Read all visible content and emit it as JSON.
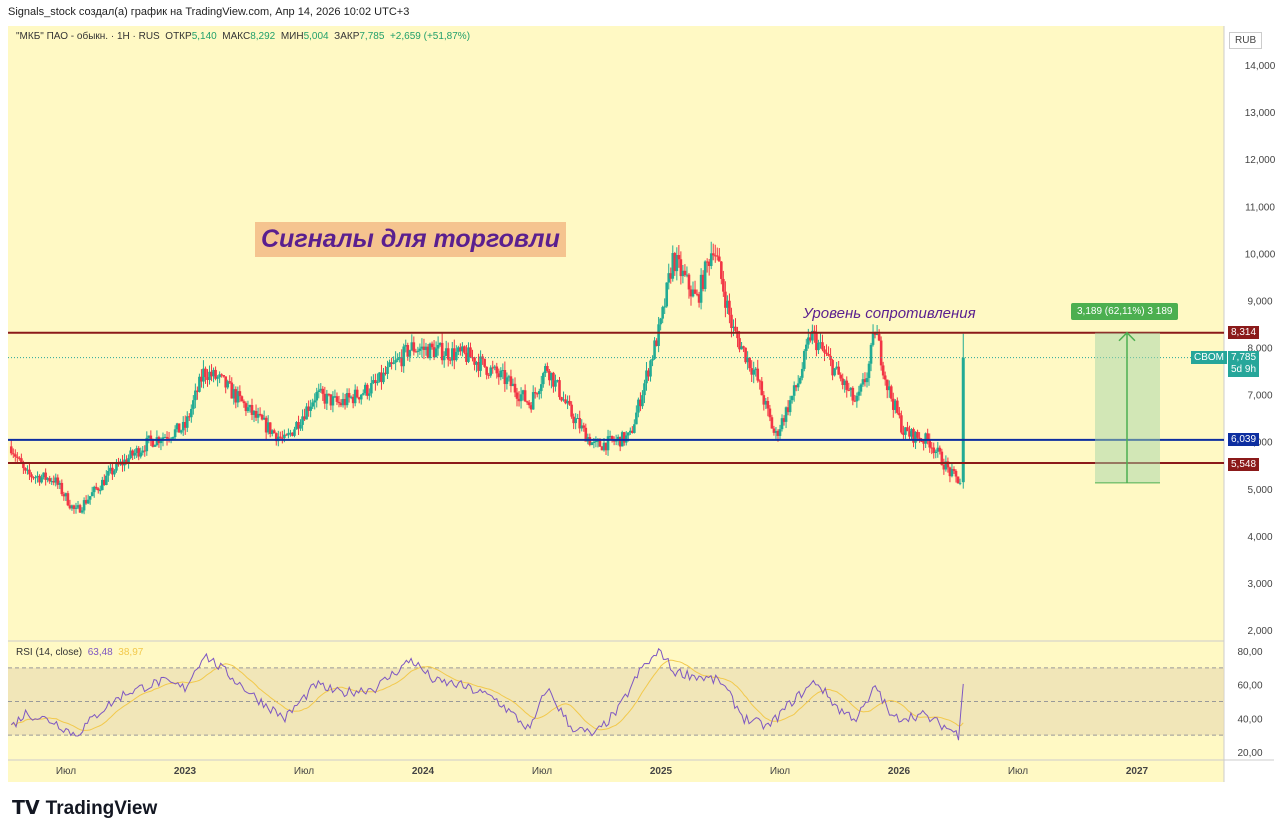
{
  "header": "Signals_stock создал(а) график на TradingView.com, Апр 14, 2026 10:02 UTC+3",
  "legend": {
    "symbol": "\"МКБ\" ПАО - обыкн. · 1H · RUS",
    "open_label": "ОТКР",
    "open": "5,140",
    "high_label": "МАКС",
    "high": "8,292",
    "low_label": "МИН",
    "low": "5,004",
    "close_label": "ЗАКР",
    "close": "7,785",
    "change": "+2,659 (+51,87%)"
  },
  "rsi_legend": {
    "label": "RSI (14, close)",
    "value": "63,48",
    "ma": "38,97"
  },
  "currency": "RUB",
  "banner": "Сигналы для торговли",
  "resistance_label": "Уровень сопротивления",
  "measure_label": "3,189 (62,11%) 3 189",
  "levels": [
    {
      "value": "8,314",
      "color": "#8b1a1a"
    },
    {
      "value": "6,039",
      "color": "#0d2ea0"
    },
    {
      "value": "5,548",
      "color": "#8b1a1a"
    }
  ],
  "last_price": {
    "exchange": "CBOM",
    "value": "7,785",
    "countdown": "5d 9h",
    "color": "#26a69a"
  },
  "logo": "TradingView",
  "chart_data": {
    "type": "candlestick",
    "title": "\"МКБ\" ПАО - обыкн.",
    "y_ticks": [
      "14,000",
      "13,000",
      "12,000",
      "11,000",
      "10,000",
      "9,000",
      "8,000",
      "7,000",
      "6,000",
      "5,000",
      "4,000",
      "3,000",
      "2,000"
    ],
    "ylim": [
      2000,
      14000
    ],
    "x_ticks": [
      {
        "label": "Июл",
        "t": 2022.5
      },
      {
        "label": "2023",
        "t": 2023
      },
      {
        "label": "Июл",
        "t": 2023.5
      },
      {
        "label": "2024",
        "t": 2024
      },
      {
        "label": "Июл",
        "t": 2024.5
      },
      {
        "label": "2025",
        "t": 2025
      },
      {
        "label": "Июл",
        "t": 2025.5
      },
      {
        "label": "2026",
        "t": 2026
      },
      {
        "label": "Июл",
        "t": 2026.5
      },
      {
        "label": "2027",
        "t": 2027
      }
    ],
    "price_path": [
      [
        2022.27,
        5.9
      ],
      [
        2022.33,
        5.3
      ],
      [
        2022.45,
        5.2
      ],
      [
        2022.54,
        4.5
      ],
      [
        2022.7,
        5.4
      ],
      [
        2022.85,
        6.0
      ],
      [
        2023.0,
        6.3
      ],
      [
        2023.08,
        7.5
      ],
      [
        2023.15,
        7.3
      ],
      [
        2023.3,
        6.5
      ],
      [
        2023.42,
        6.0
      ],
      [
        2023.55,
        7.0
      ],
      [
        2023.65,
        6.8
      ],
      [
        2023.8,
        7.2
      ],
      [
        2023.95,
        8.0
      ],
      [
        2024.1,
        7.9
      ],
      [
        2024.2,
        7.8
      ],
      [
        2024.35,
        7.3
      ],
      [
        2024.45,
        6.8
      ],
      [
        2024.52,
        7.6
      ],
      [
        2024.62,
        6.6
      ],
      [
        2024.72,
        5.9
      ],
      [
        2024.87,
        6.1
      ],
      [
        2024.95,
        7.6
      ],
      [
        2025.0,
        8.5
      ],
      [
        2025.05,
        9.9
      ],
      [
        2025.15,
        9.0
      ],
      [
        2025.22,
        10.2
      ],
      [
        2025.3,
        8.4
      ],
      [
        2025.4,
        7.4
      ],
      [
        2025.48,
        6.1
      ],
      [
        2025.58,
        7.3
      ],
      [
        2025.63,
        8.3
      ],
      [
        2025.72,
        7.6
      ],
      [
        2025.82,
        6.8
      ],
      [
        2025.87,
        7.5
      ],
      [
        2025.9,
        8.4
      ],
      [
        2025.95,
        7.2
      ],
      [
        2026.02,
        6.2
      ],
      [
        2026.13,
        6.0
      ],
      [
        2026.22,
        5.3
      ],
      [
        2026.26,
        5.14
      ],
      [
        2026.27,
        7.785
      ]
    ],
    "rsi": {
      "ylim": [
        20,
        80
      ],
      "y_ticks": [
        "80,00",
        "60,00",
        "40,00",
        "20,00"
      ],
      "bands": [
        30,
        50,
        70
      ],
      "path": [
        [
          2022.27,
          35
        ],
        [
          2022.33,
          43
        ],
        [
          2022.45,
          38
        ],
        [
          2022.54,
          30
        ],
        [
          2022.65,
          45
        ],
        [
          2022.75,
          55
        ],
        [
          2022.9,
          62
        ],
        [
          2023.0,
          58
        ],
        [
          2023.08,
          78
        ],
        [
          2023.15,
          70
        ],
        [
          2023.3,
          52
        ],
        [
          2023.42,
          40
        ],
        [
          2023.55,
          60
        ],
        [
          2023.65,
          55
        ],
        [
          2023.8,
          58
        ],
        [
          2023.95,
          75
        ],
        [
          2024.05,
          62
        ],
        [
          2024.15,
          60
        ],
        [
          2024.3,
          52
        ],
        [
          2024.45,
          33
        ],
        [
          2024.52,
          58
        ],
        [
          2024.62,
          35
        ],
        [
          2024.72,
          30
        ],
        [
          2024.82,
          45
        ],
        [
          2024.92,
          70
        ],
        [
          2025.0,
          80
        ],
        [
          2025.05,
          68
        ],
        [
          2025.15,
          65
        ],
        [
          2025.25,
          62
        ],
        [
          2025.35,
          40
        ],
        [
          2025.45,
          35
        ],
        [
          2025.55,
          50
        ],
        [
          2025.65,
          62
        ],
        [
          2025.75,
          45
        ],
        [
          2025.82,
          40
        ],
        [
          2025.88,
          52
        ],
        [
          2025.9,
          60
        ],
        [
          2025.97,
          40
        ],
        [
          2026.1,
          42
        ],
        [
          2026.22,
          33
        ],
        [
          2026.25,
          30
        ],
        [
          2026.27,
          63
        ]
      ]
    }
  }
}
